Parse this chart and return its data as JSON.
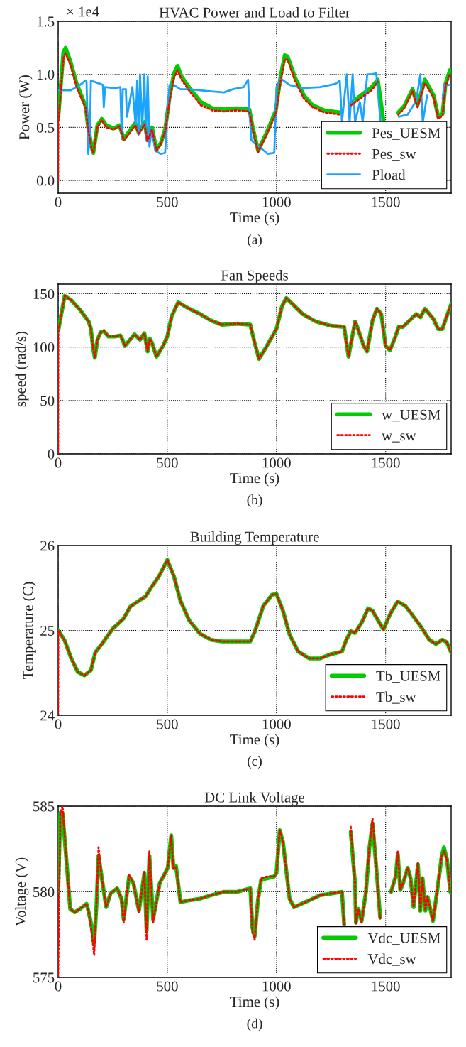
{
  "chart_data": [
    {
      "type": "line",
      "title": "HVAC Power and Load to Filter",
      "xlabel": "Time (s)",
      "ylabel": "Power (W)",
      "annotations": [
        "× 1e4",
        "(a)"
      ],
      "xlim": [
        0,
        1800
      ],
      "xticks": [
        0,
        500,
        1000,
        1500
      ],
      "ylim": [
        -0.12,
        1.5
      ],
      "yticks": [
        {
          "value": 0,
          "label": "0.0"
        },
        {
          "value": 0.5,
          "label": "0.5"
        },
        {
          "value": 1,
          "label": "1.0"
        },
        {
          "value": 1.5,
          "label": "1.5"
        }
      ],
      "grid": true,
      "legend": "bottom right",
      "series": [
        {
          "name": "Pes_UESM",
          "color": "#00cc00",
          "line_style": "solid",
          "x": [
            0,
            24,
            34,
            58,
            85,
            126,
            136,
            153,
            161,
            180,
            200,
            220,
            254,
            281,
            301,
            328,
            353,
            369,
            396,
            409,
            430,
            450,
            470,
            491,
            511,
            531,
            547,
            565,
            599,
            653,
            707,
            761,
            815,
            876,
            889,
            916,
            957,
            997,
            1018,
            1038,
            1051,
            1085,
            1126,
            1166,
            1220,
            1295,
            1308,
            1320,
            1342,
            1436,
            1464,
            1491,
            1500,
            1558,
            1585,
            1623,
            1646,
            1680,
            1720,
            1741,
            1761,
            1774,
            1795
          ],
          "values": [
            0.58,
            1.21,
            1.25,
            1.11,
            0.91,
            0.7,
            0.52,
            0.32,
            0.26,
            0.52,
            0.58,
            0.52,
            0.49,
            0.52,
            0.39,
            0.47,
            0.54,
            0.45,
            0.55,
            0.38,
            0.5,
            0.29,
            0.35,
            0.49,
            0.8,
            1.01,
            1.08,
            0.98,
            0.88,
            0.74,
            0.68,
            0.67,
            0.68,
            0.67,
            0.52,
            0.28,
            0.46,
            0.66,
            0.97,
            1.18,
            1.17,
            0.97,
            0.8,
            0.71,
            0.66,
            0.64,
            null,
            null,
            0.73,
            0.88,
            0.95,
            0.55,
            null,
            0.64,
            0.7,
            0.86,
            0.71,
            0.95,
            0.8,
            0.6,
            0.63,
            0.91,
            1.04
          ]
        },
        {
          "name": "Pes_sw",
          "color": "#ff0000",
          "line_style": "dotted",
          "x": [
            0,
            1,
            24,
            34,
            58,
            85,
            126,
            136,
            153,
            161,
            180,
            200,
            220,
            254,
            281,
            301,
            328,
            353,
            369,
            396,
            409,
            430,
            450,
            470,
            491,
            511,
            531,
            547,
            565,
            599,
            653,
            707,
            761,
            815,
            876,
            889,
            916,
            957,
            997,
            1018,
            1038,
            1051,
            1085,
            1126,
            1166,
            1220,
            1295,
            1308,
            1320,
            1342,
            1436,
            1464,
            1491,
            1500,
            1558,
            1585,
            1623,
            1646,
            1680,
            1720,
            1741,
            1761,
            1774,
            1795
          ],
          "values": [
            0,
            0.56,
            1.15,
            1.2,
            1.08,
            0.88,
            0.68,
            0.5,
            0.3,
            0.26,
            0.5,
            0.57,
            0.5,
            0.48,
            0.51,
            0.38,
            0.45,
            0.52,
            0.44,
            0.53,
            0.37,
            0.48,
            0.28,
            0.34,
            0.47,
            0.76,
            0.97,
            1.04,
            0.95,
            0.85,
            0.71,
            0.66,
            0.65,
            0.66,
            0.65,
            0.5,
            0.27,
            0.44,
            0.63,
            0.92,
            1.14,
            1.14,
            0.94,
            0.77,
            0.69,
            0.64,
            0.62,
            null,
            null,
            0.71,
            0.85,
            0.93,
            null,
            null,
            0.62,
            0.68,
            0.84,
            0.69,
            0.92,
            0.78,
            0.58,
            0.61,
            0.88,
            1.01
          ]
        },
        {
          "name": "Pload",
          "color": "#1aa3ff",
          "line_style": "solid",
          "x": [
            0,
            58,
            100,
            124,
            130,
            138,
            145,
            150,
            180,
            205,
            209,
            215,
            260,
            285,
            291,
            296,
            310,
            315,
            340,
            355,
            362,
            368,
            375,
            385,
            395,
            402,
            410,
            418,
            430,
            445,
            470,
            490,
            500,
            510,
            530,
            560,
            600,
            700,
            760,
            800,
            850,
            870,
            877,
            885,
            900,
            920,
            960,
            990,
            1000,
            1020,
            1060,
            1120,
            1200,
            1270,
            1290,
            1300,
            1322,
            1335,
            1349,
            1360,
            1382,
            1395,
            1416,
            1436,
            1457,
            1477,
            1490,
            1560,
            1600,
            1640,
            1659,
            1670,
            1690,
            1710,
            1761,
            1768,
            1795
          ],
          "values": [
            0.85,
            0.85,
            0.9,
            0.94,
            0.93,
            0.25,
            0.4,
            0.94,
            0.92,
            0.9,
            0.69,
            0.88,
            0.87,
            0.88,
            0.39,
            0.86,
            0.86,
            0.6,
            0.88,
            0.52,
            0.94,
            0.43,
            1.0,
            0.49,
            1.0,
            0.38,
            0.98,
            0.32,
            0.49,
            0.28,
            0.25,
            0.26,
            0.63,
            0.9,
            0.9,
            0.86,
            0.86,
            0.84,
            0.83,
            0.86,
            0.88,
            0.95,
            0.63,
            0.38,
            0.35,
            0.32,
            0.25,
            0.26,
            0.88,
            0.96,
            0.9,
            0.87,
            0.88,
            0.91,
            0.94,
            0.55,
            1.0,
            0.55,
            1.0,
            0.55,
            0.74,
            0.55,
            1.0,
            1.0,
            1.01,
            0.55,
            null,
            0.6,
            0.62,
            0.75,
            1.0,
            0.55,
            0.8,
            null,
            0.77,
            0.9,
            0.9
          ]
        }
      ]
    },
    {
      "type": "line",
      "title": "Fan Speeds",
      "xlabel": "Time (s)",
      "ylabel": "speed (rad/s)",
      "annotations": [
        "(b)"
      ],
      "xlim": [
        0,
        1800
      ],
      "xticks": [
        0,
        500,
        1000,
        1500
      ],
      "ylim": [
        0,
        159
      ],
      "yticks": [
        0,
        50,
        100,
        150
      ],
      "grid": true,
      "legend": "bottom right",
      "series": [
        {
          "name": "w_UESM",
          "color": "#00cc00",
          "line_style": "solid",
          "x": [
            0,
            30,
            60,
            100,
            140,
            150,
            160,
            168,
            180,
            195,
            210,
            230,
            260,
            285,
            295,
            305,
            325,
            350,
            375,
            395,
            410,
            420,
            430,
            450,
            480,
            500,
            520,
            550,
            600,
            650,
            700,
            750,
            820,
            880,
            900,
            920,
            950,
            1000,
            1025,
            1045,
            1080,
            1120,
            1180,
            1250,
            1310,
            1330,
            1360,
            1370,
            1400,
            1415,
            1440,
            1460,
            1480,
            1500,
            1520,
            1545,
            1560,
            1580,
            1610,
            1640,
            1660,
            1680,
            1700,
            1720,
            1740,
            1760,
            1780,
            1800
          ],
          "values": [
            115,
            148,
            144,
            135,
            124,
            117,
            99,
            90,
            107,
            114,
            115,
            110,
            110,
            111,
            107,
            101,
            106,
            112,
            107,
            113,
            96,
            108,
            104,
            91,
            101,
            110,
            129,
            142,
            136,
            131,
            125,
            121,
            122,
            121,
            104,
            89,
            99,
            117,
            138,
            146,
            139,
            131,
            124,
            120,
            119,
            91,
            124,
            119,
            101,
            96,
            125,
            136,
            131,
            101,
            97,
            110,
            119,
            119,
            125,
            131,
            128,
            136,
            131,
            126,
            117,
            117,
            129,
            140
          ]
        },
        {
          "name": "w_sw",
          "color": "#ff0000",
          "line_style": "dotted",
          "x": [
            0,
            1,
            30,
            60,
            100,
            140,
            150,
            160,
            168,
            180,
            195,
            210,
            230,
            260,
            285,
            295,
            305,
            325,
            350,
            375,
            395,
            410,
            420,
            430,
            450,
            480,
            500,
            520,
            550,
            600,
            650,
            700,
            750,
            820,
            880,
            900,
            920,
            950,
            1000,
            1025,
            1045,
            1080,
            1120,
            1180,
            1250,
            1310,
            1330,
            1360,
            1370,
            1400,
            1415,
            1440,
            1460,
            1480,
            1500,
            1520,
            1545,
            1560,
            1580,
            1610,
            1640,
            1660,
            1680,
            1700,
            1720,
            1740,
            1760,
            1780,
            1800
          ],
          "values": [
            0,
            115,
            148,
            144,
            135,
            124,
            117,
            99,
            90,
            107,
            114,
            115,
            110,
            110,
            111,
            107,
            101,
            106,
            112,
            107,
            113,
            96,
            108,
            104,
            91,
            101,
            110,
            129,
            142,
            136,
            131,
            125,
            121,
            122,
            121,
            104,
            89,
            99,
            117,
            138,
            146,
            139,
            131,
            124,
            120,
            119,
            91,
            124,
            119,
            101,
            96,
            125,
            136,
            131,
            101,
            97,
            110,
            119,
            119,
            125,
            131,
            128,
            136,
            131,
            126,
            117,
            117,
            129,
            140
          ]
        }
      ]
    },
    {
      "type": "line",
      "title": "Building Temperature",
      "xlabel": "Time (s)",
      "ylabel": "Temperature (C)",
      "annotations": [
        "(c)"
      ],
      "xlim": [
        0,
        1800
      ],
      "xticks": [
        0,
        500,
        1000,
        1500
      ],
      "ylim": [
        24,
        26
      ],
      "yticks": [
        24,
        25,
        26
      ],
      "grid": true,
      "legend": "bottom right",
      "series": [
        {
          "name": "Tb_UESM",
          "color": "#00cc00",
          "line_style": "solid",
          "x": [
            0,
            30,
            60,
            90,
            120,
            150,
            170,
            200,
            250,
            300,
            330,
            370,
            400,
            430,
            460,
            500,
            530,
            560,
            600,
            650,
            700,
            750,
            880,
            900,
            940,
            980,
            1000,
            1030,
            1060,
            1100,
            1150,
            1200,
            1250,
            1300,
            1320,
            1340,
            1360,
            1390,
            1420,
            1440,
            1490,
            1520,
            1555,
            1590,
            1620,
            1660,
            1700,
            1730,
            1760,
            1780,
            1800
          ],
          "values": [
            25.0,
            24.88,
            24.67,
            24.51,
            24.47,
            24.53,
            24.74,
            24.84,
            25.02,
            25.14,
            25.28,
            25.35,
            25.4,
            25.52,
            25.63,
            25.83,
            25.64,
            25.35,
            25.12,
            24.96,
            24.89,
            24.87,
            24.87,
            24.98,
            25.29,
            25.42,
            25.43,
            25.23,
            24.95,
            24.75,
            24.67,
            24.67,
            24.72,
            24.75,
            24.89,
            24.99,
            24.97,
            25.09,
            25.26,
            25.23,
            25.01,
            25.19,
            25.34,
            25.29,
            25.19,
            25.05,
            24.89,
            24.84,
            24.89,
            24.86,
            24.74
          ]
        },
        {
          "name": "Tb_sw",
          "color": "#ff0000",
          "line_style": "dotted",
          "x": [
            0,
            1,
            30,
            60,
            90,
            120,
            150,
            170,
            200,
            250,
            300,
            330,
            370,
            400,
            430,
            460,
            500,
            530,
            560,
            600,
            650,
            700,
            750,
            880,
            900,
            940,
            980,
            1000,
            1030,
            1060,
            1100,
            1150,
            1200,
            1250,
            1300,
            1320,
            1340,
            1360,
            1390,
            1420,
            1440,
            1490,
            1520,
            1555,
            1590,
            1620,
            1660,
            1700,
            1730,
            1760,
            1780,
            1800
          ],
          "values": [
            24.0,
            25.0,
            24.88,
            24.67,
            24.51,
            24.47,
            24.53,
            24.74,
            24.84,
            25.02,
            25.14,
            25.28,
            25.35,
            25.4,
            25.52,
            25.63,
            25.83,
            25.64,
            25.35,
            25.12,
            24.96,
            24.89,
            24.87,
            24.87,
            24.98,
            25.29,
            25.42,
            25.43,
            25.23,
            24.95,
            24.75,
            24.67,
            24.67,
            24.72,
            24.75,
            24.89,
            24.99,
            24.97,
            25.09,
            25.26,
            25.23,
            25.01,
            25.19,
            25.34,
            25.29,
            25.19,
            25.05,
            24.89,
            24.84,
            24.89,
            24.86,
            24.74
          ]
        }
      ]
    },
    {
      "type": "line",
      "title": "DC Link Voltage",
      "xlabel": "Time (s)",
      "ylabel": "Voltage (V)",
      "annotations": [
        "(d)"
      ],
      "xlim": [
        0,
        1800
      ],
      "xticks": [
        0,
        500,
        1000,
        1500
      ],
      "ylim": [
        575,
        585
      ],
      "yticks": [
        575,
        580,
        585
      ],
      "grid": true,
      "legend": "bottom right",
      "series": [
        {
          "name": "Vdc_UESM",
          "color": "#00cc00",
          "line_style": "solid",
          "x": [
            0,
            10,
            20,
            40,
            55,
            75,
            100,
            130,
            140,
            150,
            165,
            175,
            185,
            200,
            220,
            240,
            270,
            290,
            300,
            325,
            345,
            370,
            385,
            395,
            405,
            418,
            435,
            465,
            490,
            502,
            518,
            528,
            540,
            560,
            600,
            650,
            700,
            760,
            820,
            880,
            890,
            900,
            915,
            930,
            960,
            990,
            1000,
            1015,
            1030,
            1060,
            1080,
            1150,
            1200,
            1250,
            1300,
            1310,
            1318,
            1340,
            1360,
            1364,
            1375,
            1390,
            1410,
            1425,
            1440,
            1460,
            1475,
            1490,
            1510,
            1525,
            1546,
            1556,
            1567,
            1580,
            1601,
            1614,
            1628,
            1648,
            1659,
            1669,
            1682,
            1692,
            1717,
            1744,
            1757,
            1767,
            1781,
            1796
          ],
          "values": [
            580.0,
            584.6,
            584.6,
            581.5,
            579.0,
            578.8,
            579.0,
            579.3,
            578.8,
            578.2,
            577.0,
            579.1,
            582.1,
            580.8,
            579.1,
            579.9,
            580.2,
            579.6,
            578.4,
            580.9,
            580.5,
            578.9,
            580.2,
            581.1,
            577.7,
            582.1,
            578.4,
            580.5,
            581.1,
            581.4,
            583.3,
            581.4,
            581.5,
            579.4,
            579.5,
            579.6,
            579.8,
            580.0,
            580.0,
            580.2,
            577.9,
            577.4,
            579.5,
            580.7,
            580.8,
            580.9,
            581.1,
            583.6,
            582.9,
            579.6,
            579.1,
            579.5,
            579.8,
            579.9,
            580.0,
            578.1,
            null,
            583.5,
            580.5,
            578.2,
            579.0,
            578.3,
            580.0,
            582.5,
            584.0,
            581.0,
            578.5,
            null,
            null,
            580.0,
            580.9,
            582.2,
            580.1,
            580.5,
            581.4,
            580.8,
            579.1,
            581.6,
            578.9,
            580.8,
            578.9,
            579.7,
            578.3,
            580.8,
            582.1,
            582.6,
            581.9,
            580.0
          ]
        },
        {
          "name": "Vdc_sw",
          "color": "#ff0000",
          "line_style": "dotted",
          "x": [
            0,
            10,
            20,
            40,
            55,
            75,
            100,
            130,
            140,
            150,
            165,
            175,
            185,
            200,
            220,
            240,
            270,
            290,
            300,
            325,
            345,
            370,
            385,
            395,
            405,
            418,
            435,
            465,
            490,
            502,
            518,
            528,
            540,
            560,
            600,
            650,
            700,
            760,
            820,
            880,
            890,
            900,
            915,
            930,
            960,
            990,
            1000,
            1015,
            1030,
            1060,
            1080,
            1150,
            1200,
            1250,
            1300,
            1310,
            1318,
            1340,
            1360,
            1364,
            1375,
            1390,
            1410,
            1425,
            1440,
            1460,
            1475,
            1490,
            1510,
            1525,
            1546,
            1556,
            1567,
            1580,
            1601,
            1614,
            1628,
            1648,
            1659,
            1669,
            1682,
            1692,
            1717,
            1744,
            1757,
            1767,
            1781,
            1796
          ],
          "values": [
            575.0,
            584.6,
            585.0,
            581.5,
            579.0,
            578.8,
            579.0,
            579.3,
            578.8,
            578.0,
            576.3,
            579.1,
            582.6,
            580.8,
            579.1,
            579.9,
            580.2,
            579.6,
            578.2,
            581.0,
            580.5,
            578.8,
            580.2,
            581.2,
            577.2,
            582.4,
            578.2,
            580.5,
            581.1,
            581.4,
            583.3,
            581.3,
            581.5,
            579.4,
            579.5,
            579.6,
            579.8,
            580.0,
            580.0,
            580.2,
            577.6,
            577.2,
            579.5,
            580.8,
            580.9,
            580.9,
            581.1,
            583.6,
            582.9,
            579.6,
            579.1,
            579.5,
            579.8,
            579.9,
            580.0,
            578.1,
            null,
            583.8,
            580.5,
            578.1,
            579.0,
            578.2,
            580.0,
            582.5,
            584.3,
            581.0,
            578.4,
            null,
            null,
            580.0,
            580.9,
            582.4,
            580.1,
            580.5,
            581.4,
            580.8,
            579.1,
            581.7,
            578.9,
            580.8,
            578.9,
            579.7,
            578.3,
            580.8,
            582.1,
            582.4,
            581.9,
            580.0
          ]
        }
      ]
    }
  ]
}
